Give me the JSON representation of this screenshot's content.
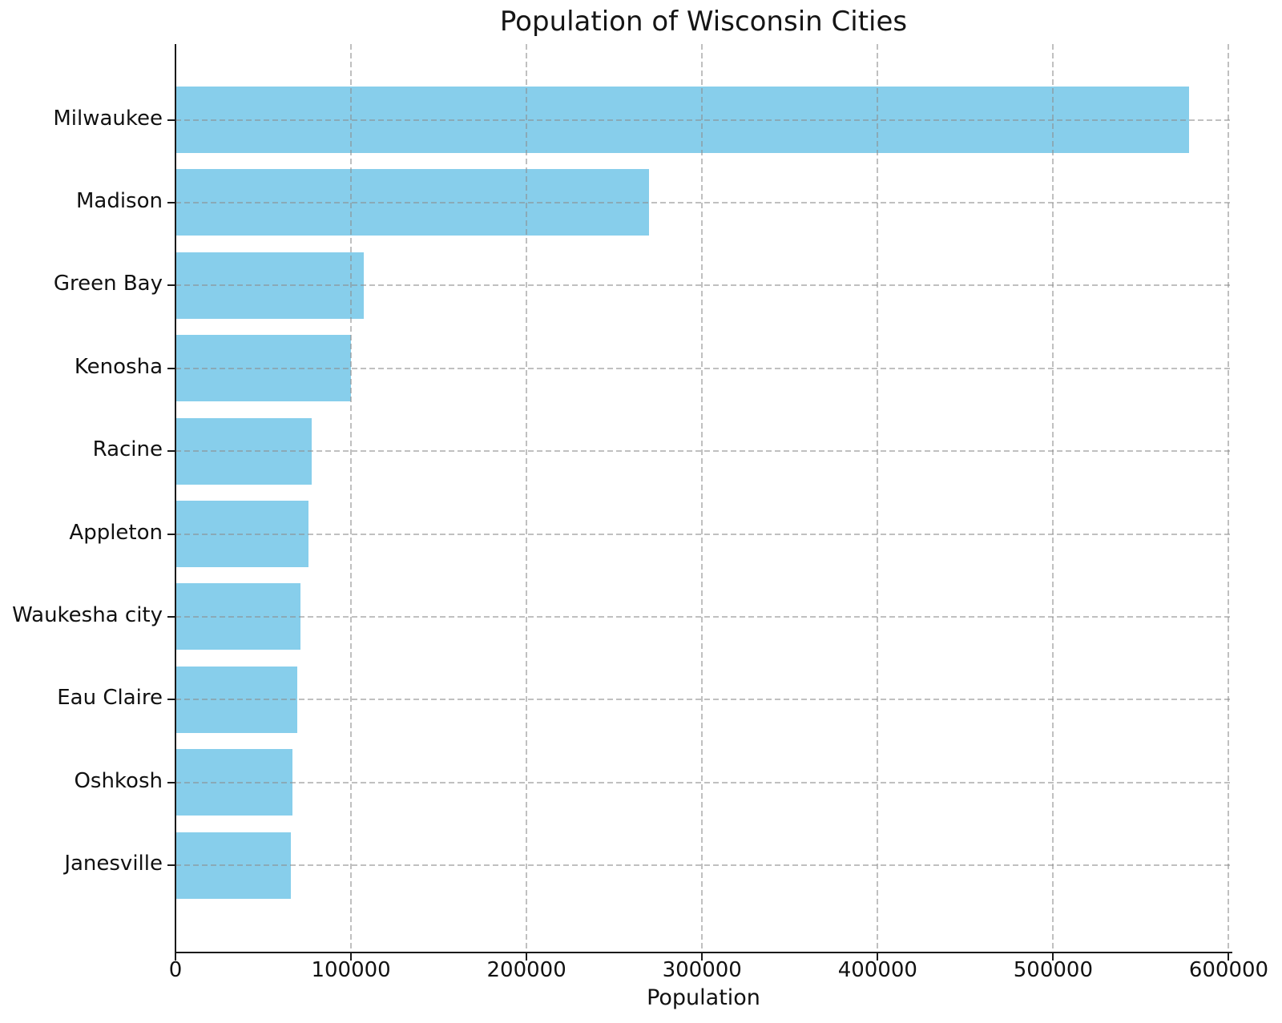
{
  "figure": {
    "background": "#ffffff",
    "text_color": "#111111"
  },
  "chart_title": "Population of Wisconsin Cities",
  "chart_data": {
    "type": "bar",
    "orientation": "horizontal",
    "title": "Population of Wisconsin Cities",
    "xlabel": "Population",
    "ylabel": "",
    "categories": [
      "Milwaukee",
      "Madison",
      "Green Bay",
      "Kenosha",
      "Racine",
      "Appleton",
      "Waukesha city",
      "Eau Claire",
      "Oshkosh",
      "Janesville"
    ],
    "values": [
      577222,
      269840,
      107395,
      99986,
      77816,
      75644,
      71158,
      69421,
      66816,
      65615
    ],
    "xlim": [
      0,
      601600
    ],
    "xticks": [
      0,
      100000,
      200000,
      300000,
      400000,
      500000,
      600000
    ],
    "xtick_labels": [
      "0",
      "100000",
      "200000",
      "300000",
      "400000",
      "500000",
      "600000"
    ],
    "bar_color": "#87CEEB",
    "grid": "dashed",
    "grid_on": true,
    "grid_above_bars": true,
    "legend": "none",
    "spines": [
      "left",
      "bottom"
    ]
  }
}
